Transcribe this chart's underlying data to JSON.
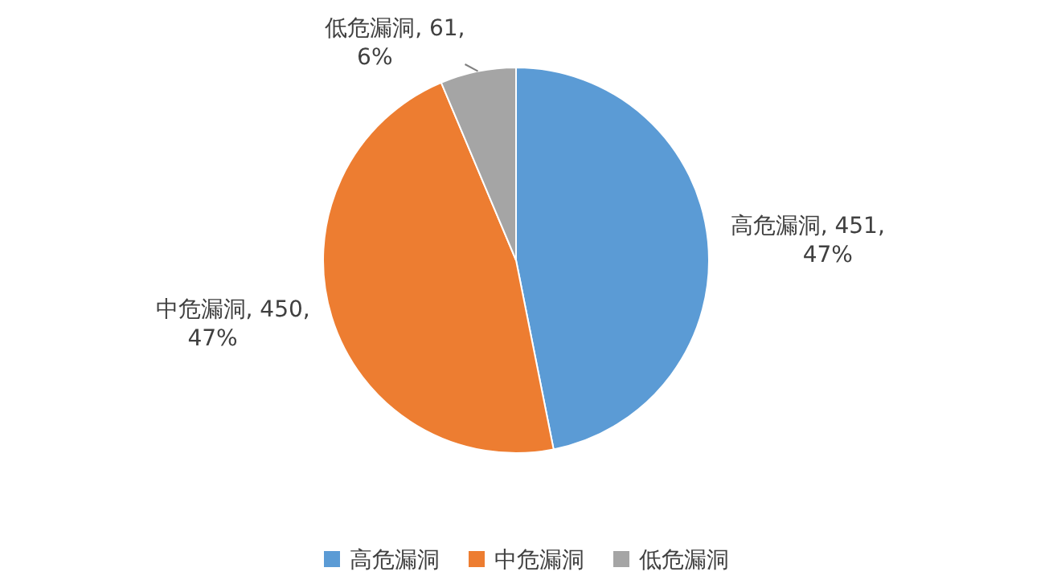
{
  "chart_data": {
    "type": "pie",
    "categories": [
      "高危漏洞",
      "中危漏洞",
      "低危漏洞"
    ],
    "values": [
      451,
      450,
      61
    ],
    "colors": [
      "#5b9bd5",
      "#ed7d31",
      "#a5a5a5"
    ],
    "value_labels": [
      "高危漏洞, 451, 47%",
      "中危漏洞, 450, 47%",
      "低危漏洞, 61, 6%"
    ],
    "legend": "bottom"
  }
}
